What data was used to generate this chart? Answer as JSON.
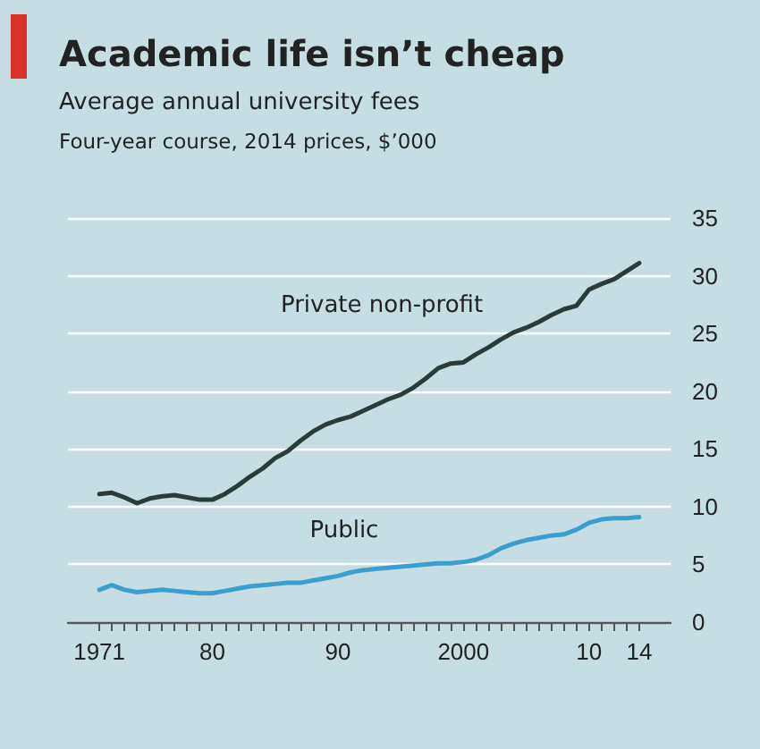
{
  "chart_data": {
    "type": "line",
    "title": "Academic life isn’t cheap",
    "subtitle": "Average annual university fees",
    "ylabel": "Four-year course, 2014 prices, $’000",
    "x": [
      1971,
      1972,
      1973,
      1974,
      1975,
      1976,
      1977,
      1978,
      1979,
      1980,
      1981,
      1982,
      1983,
      1984,
      1985,
      1986,
      1987,
      1988,
      1989,
      1990,
      1991,
      1992,
      1993,
      1994,
      1995,
      1996,
      1997,
      1998,
      1999,
      2000,
      2001,
      2002,
      2003,
      2004,
      2005,
      2006,
      2007,
      2008,
      2009,
      2010,
      2011,
      2012,
      2013,
      2014
    ],
    "series": [
      {
        "name": "Private non-profit",
        "color": "#2b3b37",
        "values": [
          11.1,
          11.2,
          10.8,
          10.3,
          10.7,
          10.9,
          11.0,
          10.8,
          10.6,
          10.6,
          11.1,
          11.8,
          12.6,
          13.3,
          14.2,
          14.8,
          15.7,
          16.5,
          17.1,
          17.5,
          17.8,
          18.3,
          18.8,
          19.3,
          19.7,
          20.3,
          21.1,
          22.0,
          22.4,
          22.5,
          23.2,
          23.8,
          24.5,
          25.1,
          25.5,
          26.0,
          26.6,
          27.1,
          27.4,
          28.8,
          29.3,
          29.7,
          30.4,
          31.1
        ]
      },
      {
        "name": "Public",
        "color": "#3a9fd0",
        "values": [
          2.8,
          3.2,
          2.8,
          2.6,
          2.7,
          2.8,
          2.7,
          2.6,
          2.5,
          2.5,
          2.7,
          2.9,
          3.1,
          3.2,
          3.3,
          3.4,
          3.4,
          3.6,
          3.8,
          4.0,
          4.3,
          4.5,
          4.6,
          4.7,
          4.8,
          4.9,
          5.0,
          5.1,
          5.1,
          5.2,
          5.4,
          5.8,
          6.4,
          6.8,
          7.1,
          7.3,
          7.5,
          7.6,
          8.0,
          8.6,
          8.9,
          9.0,
          9.0,
          9.1
        ]
      }
    ],
    "xlim": [
      1968.5,
      2016.5
    ],
    "xticks": [
      {
        "value": 1971,
        "label": "1971"
      },
      {
        "value": 1972,
        "label": null
      },
      {
        "value": 1973,
        "label": null
      },
      {
        "value": 1974,
        "label": null
      },
      {
        "value": 1975,
        "label": null
      },
      {
        "value": 1976,
        "label": null
      },
      {
        "value": 1977,
        "label": null
      },
      {
        "value": 1978,
        "label": null
      },
      {
        "value": 1979,
        "label": null
      },
      {
        "value": 1980,
        "label": "80"
      },
      {
        "value": 1981,
        "label": null
      },
      {
        "value": 1982,
        "label": null
      },
      {
        "value": 1983,
        "label": null
      },
      {
        "value": 1984,
        "label": null
      },
      {
        "value": 1985,
        "label": null
      },
      {
        "value": 1986,
        "label": null
      },
      {
        "value": 1987,
        "label": null
      },
      {
        "value": 1988,
        "label": null
      },
      {
        "value": 1989,
        "label": null
      },
      {
        "value": 1990,
        "label": "90"
      },
      {
        "value": 1991,
        "label": null
      },
      {
        "value": 1992,
        "label": null
      },
      {
        "value": 1993,
        "label": null
      },
      {
        "value": 1994,
        "label": null
      },
      {
        "value": 1995,
        "label": null
      },
      {
        "value": 1996,
        "label": null
      },
      {
        "value": 1997,
        "label": null
      },
      {
        "value": 1998,
        "label": null
      },
      {
        "value": 1999,
        "label": null
      },
      {
        "value": 2000,
        "label": "2000"
      },
      {
        "value": 2001,
        "label": null
      },
      {
        "value": 2002,
        "label": null
      },
      {
        "value": 2003,
        "label": null
      },
      {
        "value": 2004,
        "label": null
      },
      {
        "value": 2005,
        "label": null
      },
      {
        "value": 2006,
        "label": null
      },
      {
        "value": 2007,
        "label": null
      },
      {
        "value": 2008,
        "label": null
      },
      {
        "value": 2009,
        "label": null
      },
      {
        "value": 2010,
        "label": "10"
      },
      {
        "value": 2011,
        "label": null
      },
      {
        "value": 2012,
        "label": null
      },
      {
        "value": 2013,
        "label": null
      },
      {
        "value": 2014,
        "label": "14"
      }
    ],
    "ylim": [
      0,
      35
    ],
    "yticks": [
      0,
      5,
      10,
      15,
      20,
      25,
      30,
      35
    ],
    "grid": "y",
    "legend": false,
    "marker": "none",
    "line_style": "solid"
  }
}
